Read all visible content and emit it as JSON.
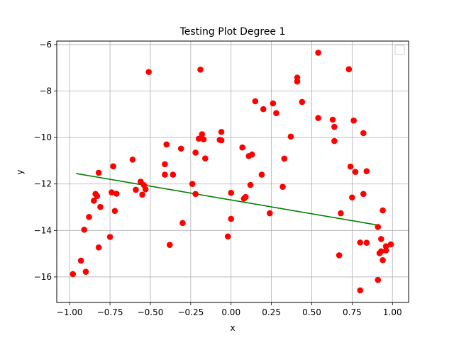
{
  "chart_data": {
    "type": "scatter",
    "title": "Testing Plot Degree 1",
    "xlabel": "x",
    "ylabel": "y",
    "xlim": [
      -1.08,
      1.1
    ],
    "ylim": [
      -17.1,
      -5.85
    ],
    "xticks": [
      -1.0,
      -0.75,
      -0.5,
      -0.25,
      0.0,
      0.25,
      0.5,
      0.75,
      1.0
    ],
    "xtick_labels": [
      "−1.00",
      "−0.75",
      "−0.50",
      "−0.25",
      "0.00",
      "0.25",
      "0.50",
      "0.75",
      "1.00"
    ],
    "yticks": [
      -16,
      -14,
      -12,
      -10,
      -8,
      -6
    ],
    "ytick_labels": [
      "−16",
      "−14",
      "−12",
      "−10",
      "−8",
      "−6"
    ],
    "grid": true,
    "legend": {
      "placement": "top-right",
      "entries": []
    },
    "colors": {
      "points": "#ff0000",
      "line": "#008000"
    },
    "series": [
      {
        "type": "scatter",
        "points": [
          [
            -0.98,
            -15.88
          ],
          [
            -0.93,
            -15.3
          ],
          [
            -0.91,
            -13.97
          ],
          [
            -0.9,
            -15.78
          ],
          [
            -0.88,
            -13.42
          ],
          [
            -0.85,
            -12.72
          ],
          [
            -0.84,
            -12.43
          ],
          [
            -0.83,
            -12.52
          ],
          [
            -0.82,
            -11.52
          ],
          [
            -0.82,
            -14.73
          ],
          [
            -0.81,
            -12.99
          ],
          [
            -0.75,
            -14.28
          ],
          [
            -0.74,
            -12.36
          ],
          [
            -0.73,
            -11.24
          ],
          [
            -0.72,
            -13.16
          ],
          [
            -0.71,
            -12.42
          ],
          [
            -0.61,
            -10.95
          ],
          [
            -0.59,
            -12.25
          ],
          [
            -0.56,
            -11.9
          ],
          [
            -0.55,
            -12.46
          ],
          [
            -0.54,
            -12.05
          ],
          [
            -0.53,
            -12.23
          ],
          [
            -0.51,
            -7.18
          ],
          [
            -0.41,
            -11.6
          ],
          [
            -0.41,
            -11.15
          ],
          [
            -0.4,
            -10.3
          ],
          [
            -0.38,
            -14.62
          ],
          [
            -0.36,
            -11.6
          ],
          [
            -0.31,
            -10.48
          ],
          [
            -0.3,
            -13.68
          ],
          [
            -0.24,
            -12.0
          ],
          [
            -0.22,
            -12.43
          ],
          [
            -0.22,
            -10.65
          ],
          [
            -0.2,
            -10.05
          ],
          [
            -0.19,
            -7.08
          ],
          [
            -0.18,
            -9.86
          ],
          [
            -0.17,
            -10.08
          ],
          [
            -0.16,
            -10.9
          ],
          [
            -0.07,
            -10.1
          ],
          [
            -0.06,
            -9.76
          ],
          [
            -0.06,
            -10.12
          ],
          [
            -0.02,
            -14.26
          ],
          [
            0.0,
            -12.38
          ],
          [
            0.0,
            -13.5
          ],
          [
            0.07,
            -10.43
          ],
          [
            0.08,
            -12.63
          ],
          [
            0.09,
            -12.56
          ],
          [
            0.11,
            -10.8
          ],
          [
            0.12,
            -12.04
          ],
          [
            0.13,
            -10.73
          ],
          [
            0.15,
            -8.44
          ],
          [
            0.19,
            -11.6
          ],
          [
            0.2,
            -8.78
          ],
          [
            0.24,
            -13.26
          ],
          [
            0.26,
            -8.53
          ],
          [
            0.28,
            -8.95
          ],
          [
            0.32,
            -12.12
          ],
          [
            0.33,
            -10.91
          ],
          [
            0.37,
            -9.96
          ],
          [
            0.41,
            -7.42
          ],
          [
            0.41,
            -7.59
          ],
          [
            0.44,
            -8.47
          ],
          [
            0.54,
            -6.35
          ],
          [
            0.54,
            -9.16
          ],
          [
            0.63,
            -9.23
          ],
          [
            0.64,
            -9.54
          ],
          [
            0.64,
            -10.15
          ],
          [
            0.67,
            -15.07
          ],
          [
            0.68,
            -13.26
          ],
          [
            0.73,
            -7.06
          ],
          [
            0.74,
            -11.25
          ],
          [
            0.75,
            -12.58
          ],
          [
            0.76,
            -9.27
          ],
          [
            0.77,
            -11.48
          ],
          [
            0.8,
            -14.52
          ],
          [
            0.8,
            -16.58
          ],
          [
            0.82,
            -9.81
          ],
          [
            0.82,
            -12.43
          ],
          [
            0.84,
            -14.53
          ],
          [
            0.84,
            -11.45
          ],
          [
            0.91,
            -13.85
          ],
          [
            0.91,
            -16.13
          ],
          [
            0.92,
            -14.98
          ],
          [
            0.93,
            -14.9
          ],
          [
            0.93,
            -14.37
          ],
          [
            0.94,
            -15.28
          ],
          [
            0.94,
            -13.14
          ],
          [
            0.96,
            -14.68
          ],
          [
            0.96,
            -14.86
          ],
          [
            0.99,
            -14.6
          ]
        ]
      },
      {
        "type": "line",
        "x": [
          -0.96,
          0.91
        ],
        "y": [
          -11.55,
          -13.77
        ]
      }
    ]
  }
}
